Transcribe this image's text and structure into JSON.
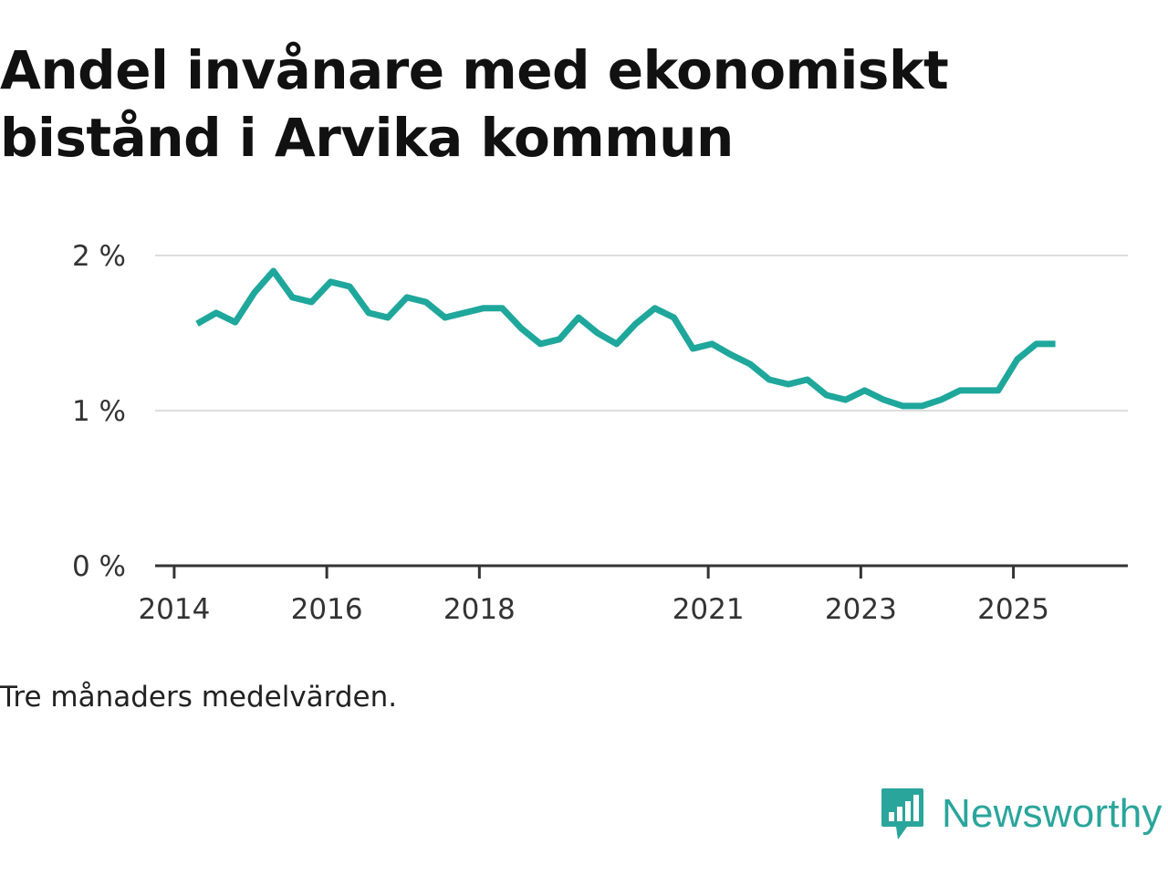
{
  "chart_data": {
    "type": "line",
    "title": "Andel invånare med ekonomiskt bistånd i Arvika kommun",
    "subtitle": "",
    "xlabel": "",
    "ylabel": "",
    "x_tick_labels": [
      "2014",
      "2016",
      "2018",
      "2021",
      "2023",
      "2025"
    ],
    "x_tick_positions": [
      2014.0,
      2016.0,
      2018.0,
      2021.0,
      2023.0,
      2025.0
    ],
    "y_tick_labels": [
      "0 %",
      "1 %",
      "2 %"
    ],
    "y_tick_values": [
      0,
      1,
      2
    ],
    "xlim": [
      2013.75,
      2026.5
    ],
    "ylim": [
      0,
      2
    ],
    "series": [
      {
        "name": "Andel invånare med ekonomiskt bistånd",
        "color": "#1fa79c",
        "x": [
          2014.3,
          2014.55,
          2014.8,
          2015.05,
          2015.3,
          2015.55,
          2015.8,
          2016.05,
          2016.3,
          2016.55,
          2016.8,
          2017.05,
          2017.3,
          2017.55,
          2017.8,
          2018.05,
          2018.3,
          2018.55,
          2018.8,
          2019.05,
          2019.3,
          2019.55,
          2019.8,
          2020.05,
          2020.3,
          2020.55,
          2020.8,
          2021.05,
          2021.3,
          2021.55,
          2021.8,
          2022.05,
          2022.3,
          2022.55,
          2022.8,
          2023.05,
          2023.3,
          2023.55,
          2023.8,
          2024.05,
          2024.3,
          2024.55,
          2024.8,
          2025.05,
          2025.3,
          2025.55
        ],
        "values": [
          1.56,
          1.63,
          1.57,
          1.76,
          1.9,
          1.73,
          1.7,
          1.83,
          1.8,
          1.63,
          1.6,
          1.73,
          1.7,
          1.6,
          1.63,
          1.66,
          1.66,
          1.53,
          1.43,
          1.46,
          1.6,
          1.5,
          1.43,
          1.56,
          1.66,
          1.6,
          1.4,
          1.43,
          1.36,
          1.3,
          1.2,
          1.17,
          1.2,
          1.1,
          1.07,
          1.13,
          1.07,
          1.03,
          1.03,
          1.07,
          1.13,
          1.13,
          1.13,
          1.33,
          1.43,
          1.43
        ]
      }
    ],
    "grid": true,
    "legend": "none"
  },
  "note": "Tre månaders medelvärden.",
  "brand": {
    "name": "Newsworthy",
    "color": "#2aa59b",
    "icon": "newsworthy-logo-icon"
  },
  "colors": {
    "line": "#1fa79c",
    "grid": "#dddddd",
    "axis": "#333333",
    "text": "#111111"
  }
}
